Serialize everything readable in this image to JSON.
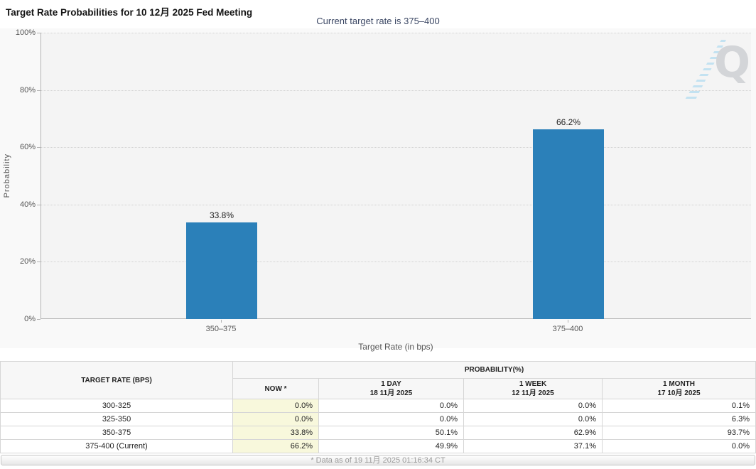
{
  "header": {
    "title": "Target Rate Probabilities for 10 12月 2025 Fed Meeting",
    "subtitle": "Current target rate is 375–400",
    "menu_icon": "hamburger-icon"
  },
  "chart_data": {
    "type": "bar",
    "title": "Target Rate Probabilities for 10 12月 2025 Fed Meeting",
    "categories": [
      "350–375",
      "375–400"
    ],
    "values": [
      33.8,
      66.2
    ],
    "value_labels": [
      "33.8%",
      "66.2%"
    ],
    "xlabel": "Target Rate (in bps)",
    "ylabel": "Probability",
    "ylim": [
      0,
      100
    ],
    "yticks": [
      "0%",
      "20%",
      "40%",
      "60%",
      "80%",
      "100%"
    ],
    "bar_color": "#2b80b9",
    "grid": "dotted horizontal",
    "legend": "none"
  },
  "watermark": {
    "letter": "Q"
  },
  "table": {
    "col1_header": "TARGET RATE (BPS)",
    "group_header": "PROBABILITY(%)",
    "sub_headers": [
      {
        "line1": "NOW *",
        "line2": ""
      },
      {
        "line1": "1 DAY",
        "line2": "18 11月 2025"
      },
      {
        "line1": "1 WEEK",
        "line2": "12 11月 2025"
      },
      {
        "line1": "1 MONTH",
        "line2": "17 10月 2025"
      }
    ],
    "rows": [
      {
        "rate": "300-325",
        "values": [
          "0.0%",
          "0.0%",
          "0.0%",
          "0.1%"
        ]
      },
      {
        "rate": "325-350",
        "values": [
          "0.0%",
          "0.0%",
          "0.0%",
          "6.3%"
        ]
      },
      {
        "rate": "350-375",
        "values": [
          "33.8%",
          "50.1%",
          "62.9%",
          "93.7%"
        ]
      },
      {
        "rate": "375-400 (Current)",
        "values": [
          "66.2%",
          "49.9%",
          "37.1%",
          "0.0%"
        ]
      }
    ]
  },
  "footer": {
    "note": "* Data as of 19 11月 2025 01:16:34 CT"
  }
}
